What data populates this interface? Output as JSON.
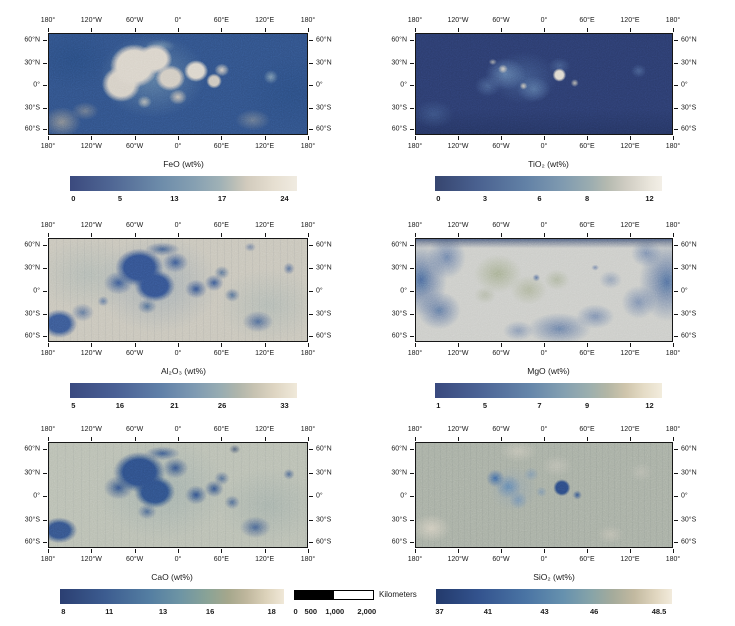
{
  "figure": {
    "axes": {
      "lon": [
        "180°",
        "120°W",
        "60°W",
        "0°",
        "60°E",
        "120°E",
        "180°"
      ],
      "lat": [
        "60°N",
        "30°N",
        "0°",
        "30°S",
        "60°S"
      ]
    },
    "panels": [
      {
        "id": "feo",
        "title": "FeO (wt%)",
        "colorbar": {
          "ticks": [
            "0",
            "5",
            "13",
            "17",
            "24"
          ],
          "gradient": [
            [
              "#3b4a7e",
              0
            ],
            [
              "#4f6694",
              18
            ],
            [
              "#6d8caa",
              40
            ],
            [
              "#86a0b2",
              55
            ],
            [
              "#9fb1b6",
              66
            ],
            [
              "#bcbfb7",
              73
            ],
            [
              "#d2cbbd",
              78
            ],
            [
              "#e6dfd1",
              90
            ],
            [
              "#f0ebe1",
              100
            ]
          ]
        }
      },
      {
        "id": "tio2",
        "title": "TiO₂ (wt%)",
        "colorbar": {
          "ticks": [
            "0",
            "3",
            "6",
            "8",
            "12"
          ],
          "gradient": [
            [
              "#36456f",
              0
            ],
            [
              "#49608f",
              18
            ],
            [
              "#6281a6",
              40
            ],
            [
              "#7f9ab0",
              56
            ],
            [
              "#9aacb0",
              68
            ],
            [
              "#b5bab0",
              76
            ],
            [
              "#cfccc2",
              84
            ],
            [
              "#eae6dc",
              95
            ],
            [
              "#f3efe7",
              100
            ]
          ]
        }
      },
      {
        "id": "al2o3",
        "title": "Al₂O₃ (wt%)",
        "colorbar": {
          "ticks": [
            "5",
            "16",
            "21",
            "26",
            "33"
          ],
          "gradient": [
            [
              "#3a4a80",
              0
            ],
            [
              "#4a6095",
              20
            ],
            [
              "#6080a8",
              40
            ],
            [
              "#7e9ab2",
              55
            ],
            [
              "#97acb2",
              66
            ],
            [
              "#afb5ab",
              74
            ],
            [
              "#c6c2b1",
              81
            ],
            [
              "#ded5c2",
              90
            ],
            [
              "#f0e9da",
              100
            ]
          ]
        }
      },
      {
        "id": "mgo",
        "title": "MgO (wt%)",
        "colorbar": {
          "ticks": [
            "1",
            "5",
            "7",
            "9",
            "12"
          ],
          "gradient": [
            [
              "#39497e",
              0
            ],
            [
              "#4c6496",
              20
            ],
            [
              "#6586aa",
              42
            ],
            [
              "#84a0b1",
              57
            ],
            [
              "#9cafae",
              68
            ],
            [
              "#b3b6a5",
              76
            ],
            [
              "#cfc5ac",
              84
            ],
            [
              "#e5dcc6",
              92
            ],
            [
              "#f2ecdd",
              100
            ]
          ]
        }
      },
      {
        "id": "cao",
        "title": "CaO (wt%)",
        "colorbar": {
          "ticks": [
            "8",
            "11",
            "13",
            "16",
            "18"
          ],
          "gradient": [
            [
              "#2b3f72",
              0
            ],
            [
              "#3c5c90",
              20
            ],
            [
              "#547ea2",
              40
            ],
            [
              "#6e95a4",
              54
            ],
            [
              "#8aa396",
              66
            ],
            [
              "#a5a78c",
              75
            ],
            [
              "#beb69c",
              83
            ],
            [
              "#dcd2ba",
              92
            ],
            [
              "#f0e8d8",
              100
            ]
          ]
        }
      },
      {
        "id": "sio2",
        "title": "SiO₂ (wt%)",
        "colorbar": {
          "ticks": [
            "37",
            "41",
            "43",
            "46",
            "48.5"
          ],
          "gradient": [
            [
              "#233a6c",
              0
            ],
            [
              "#33538e",
              18
            ],
            [
              "#4a74a4",
              38
            ],
            [
              "#6691ae",
              54
            ],
            [
              "#87a4a8",
              66
            ],
            [
              "#a5ab9b",
              75
            ],
            [
              "#c2b9a0",
              84
            ],
            [
              "#e0d6bf",
              93
            ],
            [
              "#f2ebdc",
              100
            ]
          ]
        }
      }
    ],
    "scalebar": {
      "label": "Kilometers",
      "ticks": [
        "0",
        "500",
        "1,000",
        "2,000"
      ]
    }
  },
  "chart_data": [
    {
      "type": "heatmap",
      "title": "FeO (wt%)",
      "species": "FeO",
      "unit": "wt%",
      "colorbar_ticks": [
        0,
        5,
        13,
        17,
        24
      ],
      "value_range": [
        0,
        24
      ],
      "x": "longitude",
      "y": "latitude",
      "lon_ticks_deg": [
        -180,
        -120,
        -60,
        0,
        60,
        120,
        180
      ],
      "lat_ticks_deg": [
        60,
        30,
        0,
        -30,
        -60
      ],
      "pattern": "high values (light cream) over nearside maria ~70W-40E, 20S-45N; low values (dark blue) over highlands"
    },
    {
      "type": "heatmap",
      "title": "TiO₂ (wt%)",
      "species": "TiO2",
      "unit": "wt%",
      "colorbar_ticks": [
        0,
        3,
        6,
        8,
        12
      ],
      "value_range": [
        0,
        12
      ],
      "x": "longitude",
      "y": "latitude",
      "lon_ticks_deg": [
        -180,
        -120,
        -60,
        0,
        60,
        120,
        180
      ],
      "lat_ticks_deg": [
        60,
        30,
        0,
        -30,
        -60
      ],
      "pattern": "mostly low (dark navy); bright high-Ti spots in Mare Tranquillitatis (~25E,5N) and western maria"
    },
    {
      "type": "heatmap",
      "title": "Al₂O₃ (wt%)",
      "species": "Al2O3",
      "unit": "wt%",
      "colorbar_ticks": [
        5,
        16,
        21,
        26,
        33
      ],
      "value_range": [
        5,
        33
      ],
      "x": "longitude",
      "y": "latitude",
      "lon_ticks_deg": [
        -180,
        -120,
        -60,
        0,
        60,
        120,
        180
      ],
      "lat_ticks_deg": [
        60,
        30,
        0,
        -30,
        -60
      ],
      "pattern": "high (light) highlands; low (dark blue) nearside maria and South Pole-Aitken region"
    },
    {
      "type": "heatmap",
      "title": "MgO (wt%)",
      "species": "MgO",
      "unit": "wt%",
      "colorbar_ticks": [
        1,
        5,
        7,
        9,
        12
      ],
      "value_range": [
        1,
        12
      ],
      "x": "longitude",
      "y": "latitude",
      "lon_ticks_deg": [
        -180,
        -120,
        -60,
        0,
        60,
        120,
        180
      ],
      "lat_ticks_deg": [
        60,
        30,
        0,
        -30,
        -60
      ],
      "pattern": "blue mottled high-Mg farside flanks and southern belt; pale low-Mg center with sage patches over maria"
    },
    {
      "type": "heatmap",
      "title": "CaO (wt%)",
      "species": "CaO",
      "unit": "wt%",
      "colorbar_ticks": [
        8,
        11,
        13,
        16,
        18
      ],
      "value_range": [
        8,
        18
      ],
      "x": "longitude",
      "y": "latitude",
      "lon_ticks_deg": [
        -180,
        -120,
        -60,
        0,
        60,
        120,
        180
      ],
      "lat_ticks_deg": [
        60,
        30,
        0,
        -30,
        -60
      ],
      "pattern": "high (light khaki) highlands; low (dark blue) nearside maria and southern farside"
    },
    {
      "type": "heatmap",
      "title": "SiO₂ (wt%)",
      "species": "SiO2",
      "unit": "wt%",
      "colorbar_ticks": [
        37,
        41,
        43,
        46,
        48.5
      ],
      "value_range": [
        37,
        48.5
      ],
      "x": "longitude",
      "y": "latitude",
      "lon_ticks_deg": [
        -180,
        -120,
        -60,
        0,
        60,
        120,
        180
      ],
      "lat_ticks_deg": [
        60,
        30,
        0,
        -30,
        -60
      ],
      "pattern": "nearly uniform (sage gray); low-Si blue patches in Procellarum and dark spot near Tranquillitatis"
    }
  ]
}
